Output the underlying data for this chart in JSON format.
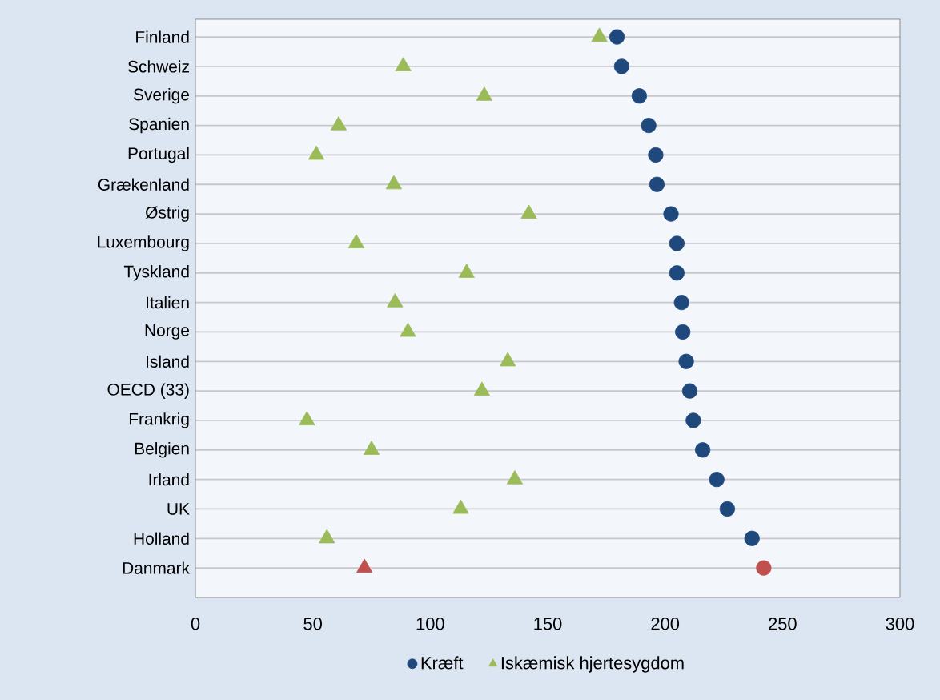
{
  "chart_data": {
    "type": "scatter",
    "orientation": "horizontal",
    "categories": [
      "Finland",
      "Schweiz",
      "Sverige",
      "Spanien",
      "Portugal",
      "Grækenland",
      "Østrig",
      "Luxembourg",
      "Tyskland",
      "Italien",
      "Norge",
      "Island",
      "OECD (33)",
      "Frankrig",
      "Belgien",
      "Irland",
      "UK",
      "Holland",
      "Danmark"
    ],
    "series": [
      {
        "name": "Kræft",
        "marker": "circle",
        "color": "#1f497d",
        "colors": [
          "#1f497d",
          "#1f497d",
          "#1f497d",
          "#1f497d",
          "#1f497d",
          "#1f497d",
          "#1f497d",
          "#1f497d",
          "#1f497d",
          "#1f497d",
          "#1f497d",
          "#1f497d",
          "#1f497d",
          "#1f497d",
          "#1f497d",
          "#1f497d",
          "#1f497d",
          "#1f497d",
          "#c0504d"
        ],
        "values": [
          179.5,
          181.5,
          189,
          193,
          196,
          196.5,
          202.5,
          205,
          205,
          207,
          207.5,
          209,
          210.5,
          212,
          216,
          222,
          226.5,
          237,
          242
        ]
      },
      {
        "name": "Iskæmisk hjertesygdom",
        "marker": "triangle",
        "color": "#9bbb59",
        "colors": [
          "#9bbb59",
          "#9bbb59",
          "#9bbb59",
          "#9bbb59",
          "#9bbb59",
          "#9bbb59",
          "#9bbb59",
          "#9bbb59",
          "#9bbb59",
          "#9bbb59",
          "#9bbb59",
          "#9bbb59",
          "#9bbb59",
          "#9bbb59",
          "#9bbb59",
          "#9bbb59",
          "#9bbb59",
          "#9bbb59",
          "#c0504d"
        ],
        "values": [
          172,
          88.5,
          123,
          61,
          51.5,
          84.5,
          142,
          68.5,
          115.5,
          85,
          90.5,
          133,
          122,
          47.5,
          75,
          136,
          113,
          56,
          72
        ]
      }
    ],
    "xlim": [
      0,
      300
    ],
    "xticks": [
      0,
      50,
      100,
      150,
      200,
      250,
      300
    ],
    "grid": "y",
    "legend": "bottom"
  }
}
